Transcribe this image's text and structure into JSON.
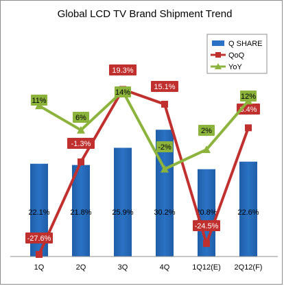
{
  "chart_data": {
    "type": "bar",
    "title": "Global LCD TV Brand Shipment Trend",
    "categories": [
      "1Q",
      "2Q",
      "3Q",
      "4Q",
      "1Q12(E)",
      "2Q12(F)"
    ],
    "series": [
      {
        "name": "Q SHARE",
        "type": "bar",
        "values": [
          22.1,
          21.8,
          25.9,
          30.2,
          20.8,
          22.6
        ],
        "labels": [
          "22.1%",
          "21.8%",
          "25.9%",
          "30.2%",
          "20.8%",
          "22.6%"
        ],
        "color": "#2b72c4"
      },
      {
        "name": "QoQ",
        "type": "line",
        "values": [
          -27.6,
          -1.3,
          19.3,
          15.1,
          -24.5,
          8.4
        ],
        "labels": [
          "-27.6%",
          "-1.3%",
          "19.3%",
          "15.1%",
          "-24.5%",
          "8.4%"
        ],
        "color": "#c0302e"
      },
      {
        "name": "YoY",
        "type": "line",
        "values": [
          11,
          6,
          14,
          -2,
          2,
          12
        ],
        "labels": [
          "11%",
          "6%",
          "14%",
          "-2%",
          "2%",
          "12%"
        ],
        "color": "#8cb33c"
      }
    ],
    "legend": "top-right",
    "grid": false
  }
}
